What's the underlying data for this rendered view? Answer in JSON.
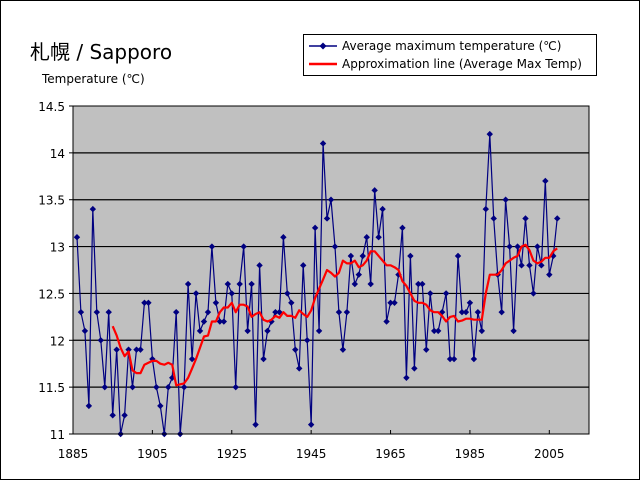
{
  "page": {
    "title": "札幌 / Sapporo",
    "colors": {
      "plot_bg": "#c0c0c0",
      "series": "#000080",
      "approx": "#ff0000"
    }
  },
  "chart_data": {
    "type": "line",
    "title": "札幌 / Sapporo",
    "xlabel": "",
    "ylabel": "Temperature (℃)",
    "xlim": [
      1885,
      2015
    ],
    "ylim": [
      11,
      14.5
    ],
    "grid": true,
    "legend_position": "top-right",
    "x_ticks": [
      "1885",
      "1905",
      "1925",
      "1945",
      "1965",
      "1985",
      "2005"
    ],
    "y_ticks": [
      "14.5",
      "14",
      "13.5",
      "13",
      "12.5",
      "12",
      "11.5",
      "11"
    ],
    "series": [
      {
        "name": "Average maximum temperature (℃)",
        "color": "#000080",
        "marker": "diamond",
        "x": [
          1886,
          1887,
          1888,
          1889,
          1890,
          1891,
          1892,
          1893,
          1894,
          1895,
          1896,
          1897,
          1898,
          1899,
          1900,
          1901,
          1902,
          1903,
          1904,
          1905,
          1906,
          1907,
          1908,
          1909,
          1910,
          1911,
          1912,
          1913,
          1914,
          1915,
          1916,
          1917,
          1918,
          1919,
          1920,
          1921,
          1922,
          1923,
          1924,
          1925,
          1926,
          1927,
          1928,
          1929,
          1930,
          1931,
          1932,
          1933,
          1934,
          1935,
          1936,
          1937,
          1938,
          1939,
          1940,
          1941,
          1942,
          1943,
          1944,
          1945,
          1946,
          1947,
          1948,
          1949,
          1950,
          1951,
          1952,
          1953,
          1954,
          1955,
          1956,
          1957,
          1958,
          1959,
          1960,
          1961,
          1962,
          1963,
          1964,
          1965,
          1966,
          1967,
          1968,
          1969,
          1970,
          1971,
          1972,
          1973,
          1974,
          1975,
          1976,
          1977,
          1978,
          1979,
          1980,
          1981,
          1982,
          1983,
          1984,
          1985,
          1986,
          1987,
          1988,
          1989,
          1990,
          1991,
          1992,
          1993,
          1994,
          1995,
          1996,
          1997,
          1998,
          1999,
          2000,
          2001,
          2002,
          2003,
          2004,
          2005,
          2006,
          2007
        ],
        "values": [
          13.1,
          12.3,
          12.1,
          11.3,
          13.4,
          12.3,
          12.0,
          11.5,
          12.3,
          11.2,
          11.9,
          11.0,
          11.2,
          11.9,
          11.5,
          11.9,
          11.9,
          12.4,
          12.4,
          11.8,
          11.5,
          11.3,
          11.0,
          11.5,
          11.6,
          12.3,
          11.0,
          11.5,
          12.6,
          11.8,
          12.5,
          12.1,
          12.2,
          12.3,
          13.0,
          12.4,
          12.2,
          12.2,
          12.6,
          12.5,
          11.5,
          12.6,
          13.0,
          12.1,
          12.6,
          11.1,
          12.8,
          11.8,
          12.1,
          12.2,
          12.3,
          12.3,
          13.1,
          12.5,
          12.4,
          11.9,
          11.7,
          12.8,
          12.0,
          11.1,
          13.2,
          12.1,
          14.1,
          13.3,
          13.5,
          13.0,
          12.3,
          11.9,
          12.3,
          12.9,
          12.6,
          12.7,
          12.9,
          13.1,
          12.6,
          13.6,
          13.1,
          13.4,
          12.2,
          12.4,
          12.4,
          12.7,
          13.2,
          11.6,
          12.9,
          11.7,
          12.6,
          12.6,
          11.9,
          12.5,
          12.1,
          12.1,
          12.3,
          12.5,
          11.8,
          11.8,
          12.9,
          12.3,
          12.3,
          12.4,
          11.8,
          12.3,
          12.1,
          13.4,
          14.2,
          13.3,
          12.7,
          12.3,
          13.5,
          13.0,
          12.1,
          13.0,
          12.8,
          13.3,
          12.8,
          12.5,
          13.0,
          12.8,
          13.7,
          12.7,
          12.9,
          13.3
        ]
      },
      {
        "name": "Approximation line (Average Max Temp)",
        "color": "#ff0000",
        "marker": "none",
        "x": [
          1895,
          1896,
          1897,
          1898,
          1899,
          1900,
          1901,
          1902,
          1903,
          1904,
          1905,
          1906,
          1907,
          1908,
          1909,
          1910,
          1911,
          1912,
          1913,
          1914,
          1915,
          1916,
          1917,
          1918,
          1919,
          1920,
          1921,
          1922,
          1923,
          1924,
          1925,
          1926,
          1927,
          1928,
          1929,
          1930,
          1931,
          1932,
          1933,
          1934,
          1935,
          1936,
          1937,
          1938,
          1939,
          1940,
          1941,
          1942,
          1943,
          1944,
          1945,
          1946,
          1947,
          1948,
          1949,
          1950,
          1951,
          1952,
          1953,
          1954,
          1955,
          1956,
          1957,
          1958,
          1959,
          1960,
          1961,
          1962,
          1963,
          1964,
          1965,
          1966,
          1967,
          1968,
          1969,
          1970,
          1971,
          1972,
          1973,
          1974,
          1975,
          1976,
          1977,
          1978,
          1979,
          1980,
          1981,
          1982,
          1983,
          1984,
          1985,
          1986,
          1987,
          1988,
          1989,
          1990,
          1991,
          1992,
          1993,
          1994,
          1995,
          1996,
          1997,
          1998,
          1999,
          2000,
          2001,
          2002,
          2003,
          2004,
          2005,
          2006,
          2007
        ],
        "values": [
          12.15,
          12.05,
          11.92,
          11.83,
          11.88,
          11.68,
          11.65,
          11.65,
          11.74,
          11.76,
          11.78,
          11.78,
          11.75,
          11.74,
          11.76,
          11.74,
          11.52,
          11.53,
          11.54,
          11.6,
          11.7,
          11.8,
          11.92,
          12.04,
          12.05,
          12.2,
          12.2,
          12.3,
          12.35,
          12.35,
          12.4,
          12.3,
          12.38,
          12.38,
          12.36,
          12.25,
          12.28,
          12.3,
          12.22,
          12.2,
          12.22,
          12.26,
          12.24,
          12.3,
          12.26,
          12.26,
          12.24,
          12.32,
          12.28,
          12.25,
          12.32,
          12.45,
          12.55,
          12.65,
          12.75,
          12.72,
          12.68,
          12.72,
          12.85,
          12.82,
          12.82,
          12.85,
          12.78,
          12.8,
          12.85,
          12.95,
          12.95,
          12.9,
          12.85,
          12.8,
          12.8,
          12.78,
          12.75,
          12.63,
          12.58,
          12.5,
          12.42,
          12.4,
          12.4,
          12.38,
          12.32,
          12.3,
          12.3,
          12.26,
          12.2,
          12.25,
          12.26,
          12.2,
          12.21,
          12.23,
          12.23,
          12.22,
          12.22,
          12.22,
          12.5,
          12.7,
          12.7,
          12.7,
          12.75,
          12.82,
          12.85,
          12.88,
          12.9,
          13.0,
          13.02,
          12.96,
          12.85,
          12.82,
          12.84,
          12.88,
          12.88,
          12.95,
          12.98
        ]
      }
    ]
  }
}
